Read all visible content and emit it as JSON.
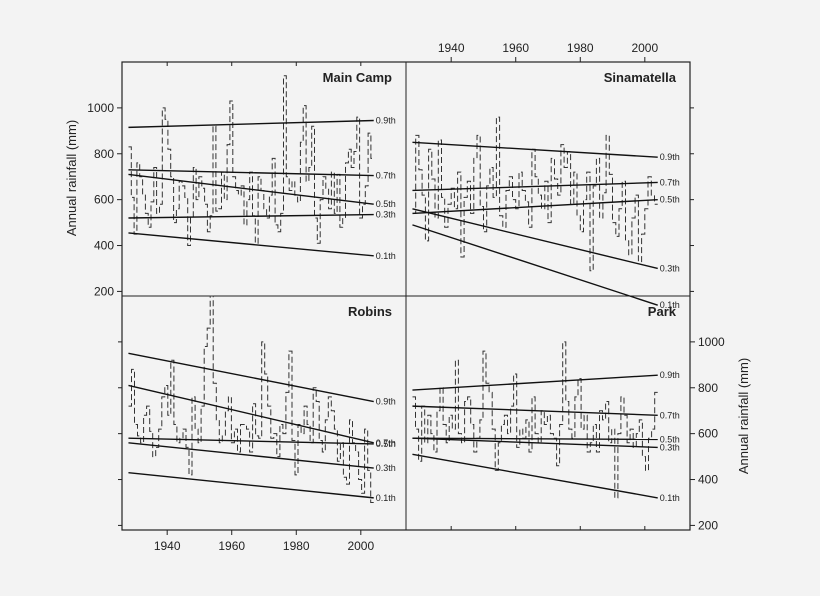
{
  "chart_data": {
    "type": "line",
    "x_ticks": [
      1940,
      1960,
      1980,
      2000
    ],
    "y_ticks": [
      200,
      400,
      600,
      800,
      1000
    ],
    "xlim": [
      1926,
      2014
    ],
    "ylim": [
      180,
      1200
    ],
    "ylabel_left": "Annual rainfall (mm)",
    "ylabel_right": "Annual rainfall (mm)",
    "panels": [
      {
        "title": "Main Camp",
        "quantiles": [
          {
            "label": "0.9th",
            "start": [
              1928,
              915
            ],
            "end": [
              2004,
              945
            ]
          },
          {
            "label": "0.7th",
            "start": [
              1928,
              730
            ],
            "end": [
              2004,
              705
            ]
          },
          {
            "label": "0.5th",
            "start": [
              1928,
              710
            ],
            "end": [
              2004,
              580
            ]
          },
          {
            "label": "0.3th",
            "start": [
              1928,
              520
            ],
            "end": [
              2004,
              535
            ]
          },
          {
            "label": "0.1th",
            "start": [
              1928,
              455
            ],
            "end": [
              2004,
              355
            ]
          }
        ],
        "rainfall": [
          830,
          610,
          450,
          760,
          700,
          620,
          540,
          480,
          590,
          740,
          540,
          580,
          1000,
          950,
          820,
          700,
          500,
          560,
          680,
          660,
          610,
          400,
          520,
          740,
          600,
          700,
          650,
          580,
          460,
          530,
          920,
          550,
          560,
          720,
          600,
          840,
          1030,
          700,
          640,
          620,
          660,
          490,
          600,
          720,
          530,
          410,
          700,
          640,
          560,
          520,
          620,
          780,
          490,
          460,
          540,
          1140,
          700,
          640,
          680,
          620,
          590,
          850,
          1010,
          680,
          740,
          920,
          520,
          410,
          600,
          700,
          650,
          560,
          720,
          540,
          710,
          480,
          520,
          760,
          820,
          740,
          810,
          960,
          520,
          580,
          660,
          890,
          780
        ]
      },
      {
        "title": "Sinamatella",
        "quantiles": [
          {
            "label": "0.9th",
            "start": [
              1928,
              850
            ],
            "end": [
              2004,
              785
            ]
          },
          {
            "label": "0.7th",
            "start": [
              1928,
              640
            ],
            "end": [
              2004,
              675
            ]
          },
          {
            "label": "0.5th",
            "start": [
              1928,
              540
            ],
            "end": [
              2004,
              600
            ]
          },
          {
            "label": "0.3th",
            "start": [
              1928,
              560
            ],
            "end": [
              2004,
              300
            ]
          },
          {
            "label": "0.1th",
            "start": [
              1928,
              490
            ],
            "end": [
              2004,
              140
            ]
          }
        ],
        "rainfall": [
          540,
          880,
          730,
          620,
          420,
          820,
          690,
          520,
          860,
          610,
          480,
          580,
          650,
          560,
          720,
          350,
          610,
          680,
          540,
          780,
          880,
          570,
          460,
          660,
          740,
          610,
          960,
          530,
          480,
          640,
          700,
          600,
          560,
          720,
          640,
          590,
          480,
          820,
          700,
          620,
          560,
          680,
          500,
          780,
          690,
          620,
          840,
          740,
          810,
          580,
          720,
          530,
          460,
          600,
          720,
          290,
          660,
          780,
          520,
          630,
          880,
          710,
          500,
          440,
          560,
          680,
          420,
          360,
          520,
          620,
          330,
          450,
          560,
          700,
          620,
          580
        ]
      },
      {
        "title": "Robins",
        "quantiles": [
          {
            "label": "0.9th",
            "start": [
              1928,
              950
            ],
            "end": [
              2004,
              740
            ]
          },
          {
            "label": "0.7th",
            "start": [
              1928,
              810
            ],
            "end": [
              2004,
              560
            ]
          },
          {
            "label": "0.5th",
            "start": [
              1928,
              580
            ],
            "end": [
              2004,
              555
            ]
          },
          {
            "label": "0.3th",
            "start": [
              1928,
              560
            ],
            "end": [
              2004,
              450
            ]
          },
          {
            "label": "0.1th",
            "start": [
              1928,
              430
            ],
            "end": [
              2004,
              320
            ]
          }
        ],
        "rainfall": [
          720,
          880,
          640,
          590,
          560,
          680,
          720,
          610,
          500,
          540,
          620,
          760,
          810,
          680,
          920,
          640,
          560,
          580,
          620,
          540,
          420,
          760,
          620,
          560,
          720,
          980,
          1060,
          1200,
          820,
          660,
          560,
          590,
          700,
          760,
          560,
          620,
          520,
          640,
          640,
          620,
          520,
          730,
          590,
          580,
          1000,
          860,
          720,
          580,
          600,
          500,
          640,
          600,
          780,
          960,
          570,
          420,
          640,
          600,
          720,
          640,
          560,
          800,
          740,
          570,
          520,
          660,
          760,
          700,
          620,
          480,
          560,
          410,
          380,
          660,
          560,
          520,
          400,
          340,
          620,
          440,
          300
        ]
      },
      {
        "title": "Park",
        "quantiles": [
          {
            "label": "0.9th",
            "start": [
              1928,
              790
            ],
            "end": [
              2004,
              855
            ]
          },
          {
            "label": "0.7th",
            "start": [
              1928,
              720
            ],
            "end": [
              2004,
              680
            ]
          },
          {
            "label": "0.5th",
            "start": [
              1928,
              580
            ],
            "end": [
              2004,
              575
            ]
          },
          {
            "label": "0.3th",
            "start": [
              1928,
              580
            ],
            "end": [
              2004,
              540
            ]
          },
          {
            "label": "0.1th",
            "start": [
              1928,
              510
            ],
            "end": [
              2004,
              320
            ]
          }
        ],
        "rainfall": [
          760,
          620,
          480,
          720,
          560,
          680,
          600,
          520,
          700,
          800,
          640,
          560,
          680,
          620,
          920,
          600,
          560,
          740,
          760,
          640,
          520,
          580,
          660,
          960,
          820,
          780,
          620,
          440,
          560,
          640,
          680,
          600,
          720,
          860,
          540,
          620,
          580,
          660,
          520,
          760,
          600,
          560,
          700,
          640,
          680,
          600,
          580,
          460,
          640,
          1000,
          740,
          620,
          580,
          760,
          840,
          620,
          680,
          520,
          560,
          640,
          520,
          700,
          660,
          740,
          560,
          620,
          320,
          600,
          760,
          680,
          560,
          620,
          540,
          600,
          660,
          500,
          440,
          580,
          620,
          780
        ]
      }
    ]
  }
}
